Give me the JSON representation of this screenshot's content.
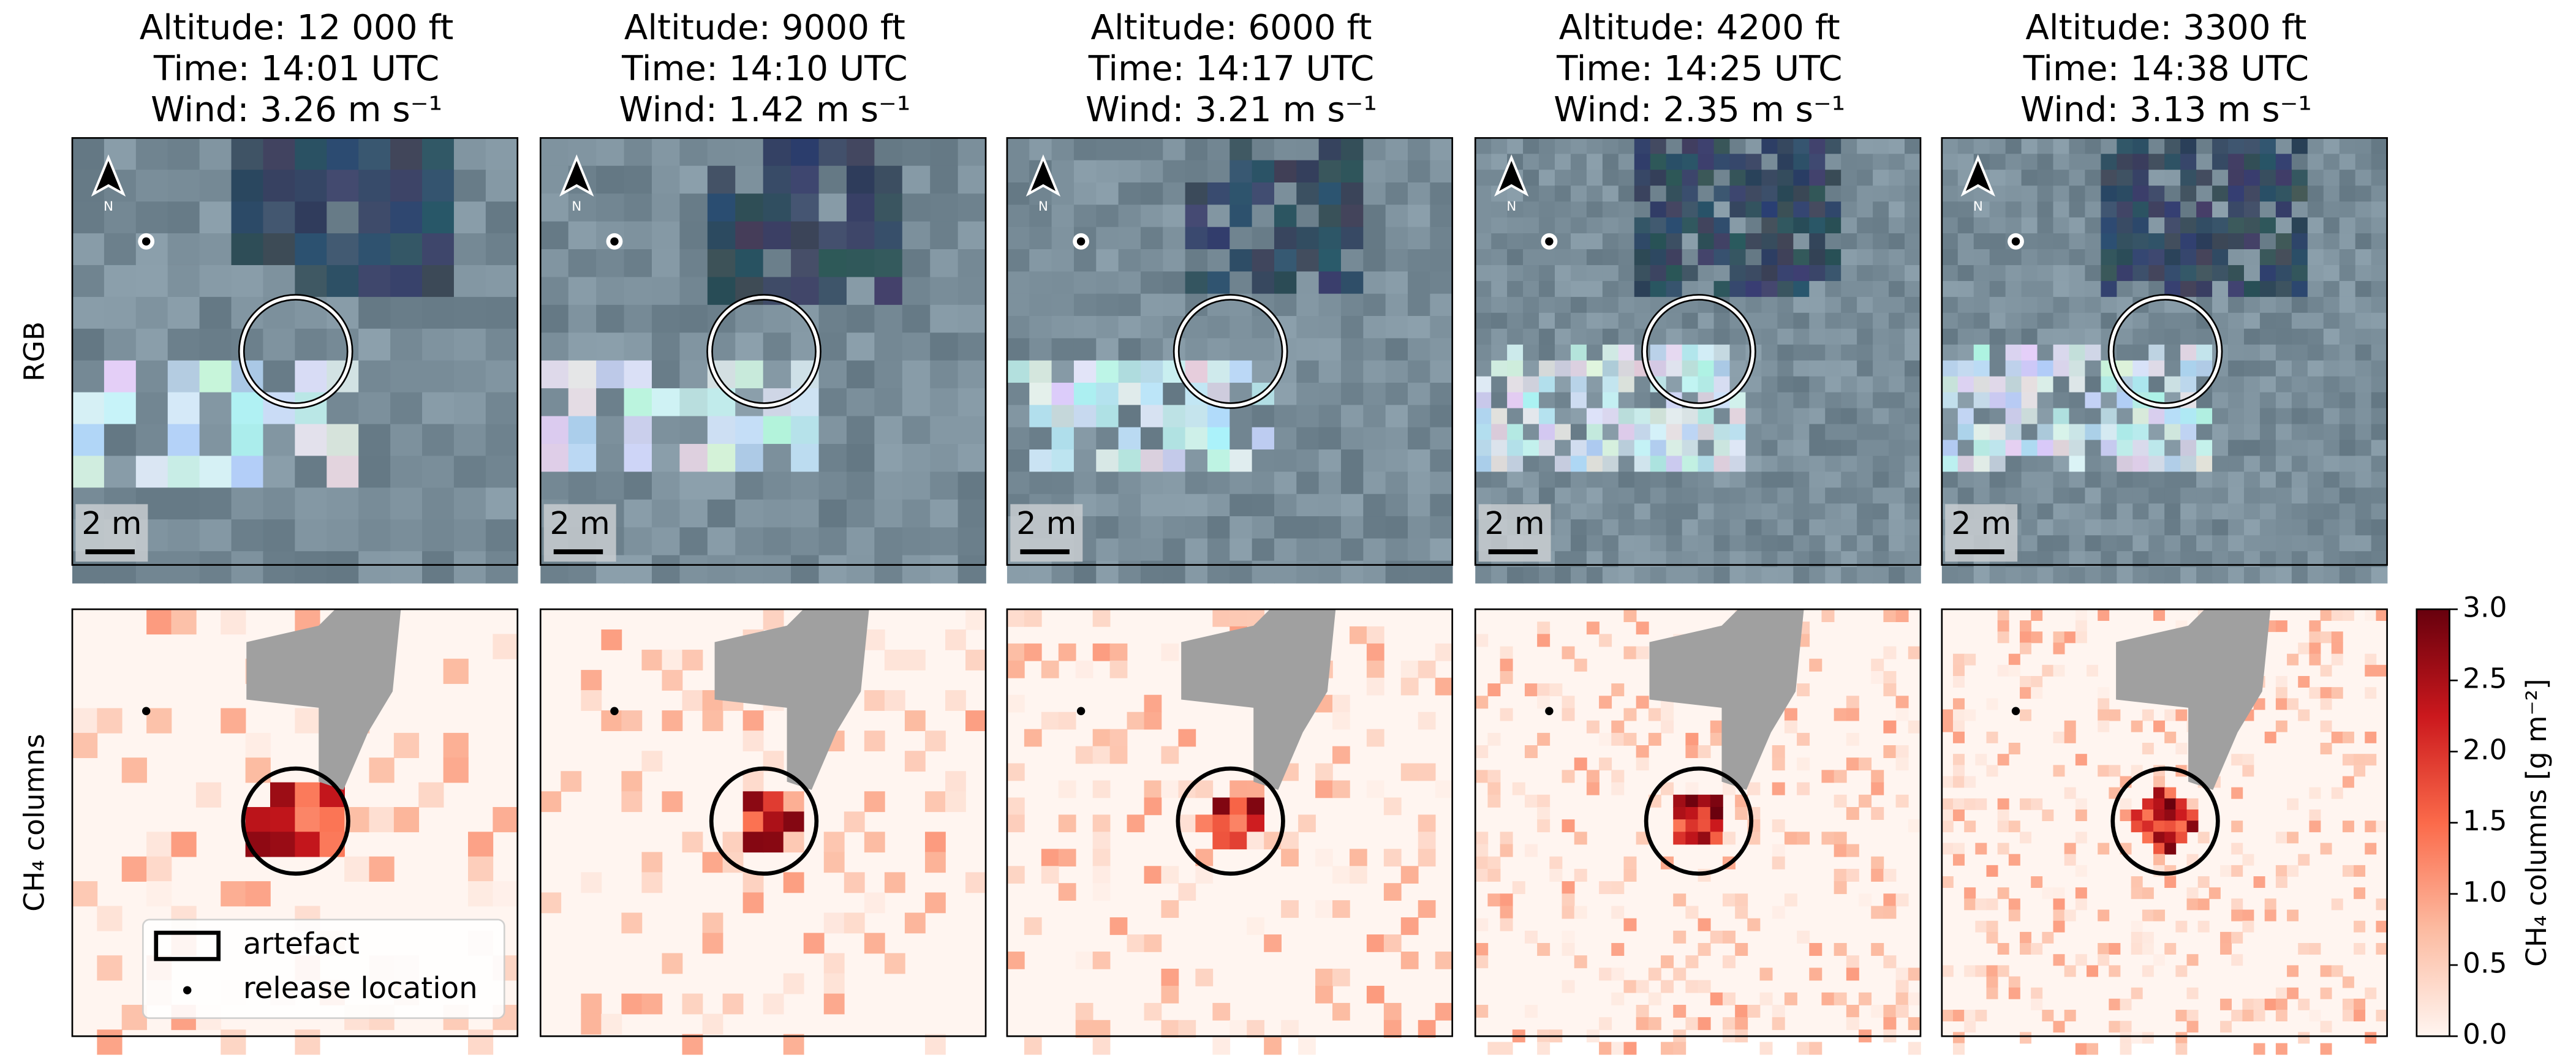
{
  "chart_data": {
    "type": "image-grid",
    "panels": [
      {
        "title": [
          "Altitude: 12 000 ft",
          "Time: 14:01 UTC",
          "Wind: 3.26 m s⁻¹"
        ]
      },
      {
        "title": [
          "Altitude: 9000 ft",
          "Time: 14:10 UTC",
          "Wind: 1.42 m s⁻¹"
        ]
      },
      {
        "title": [
          "Altitude: 6000 ft",
          "Time: 14:17 UTC",
          "Wind: 3.21 m s⁻¹"
        ]
      },
      {
        "title": [
          "Altitude: 4200 ft",
          "Time: 14:25 UTC",
          "Wind: 2.35 m s⁻¹"
        ]
      },
      {
        "title": [
          "Altitude: 3300 ft",
          "Time: 14:38 UTC",
          "Wind: 3.13 m s⁻¹"
        ]
      }
    ],
    "row_labels": [
      "RGB",
      "CH₄ columns"
    ],
    "north_label": "N",
    "scale_bar": "2 m",
    "legend": [
      "artefact",
      "release location"
    ],
    "colorbar": {
      "label": "CH₄ columns [g m⁻²]",
      "lim": [
        0,
        3
      ],
      "ticks": [
        {
          "value": 0,
          "label": "0.0"
        },
        {
          "value": 0.5,
          "label": "0.5"
        },
        {
          "value": 1,
          "label": "1.0"
        },
        {
          "value": 1.5,
          "label": "1.5"
        },
        {
          "value": 2,
          "label": "2.0"
        },
        {
          "value": 2.5,
          "label": "2.5"
        },
        {
          "value": 3,
          "label": "3.0"
        }
      ],
      "colormap": [
        "#fff5f0",
        "#fcbba1",
        "#fb6a4a",
        "#cb181d",
        "#67000d"
      ]
    }
  }
}
